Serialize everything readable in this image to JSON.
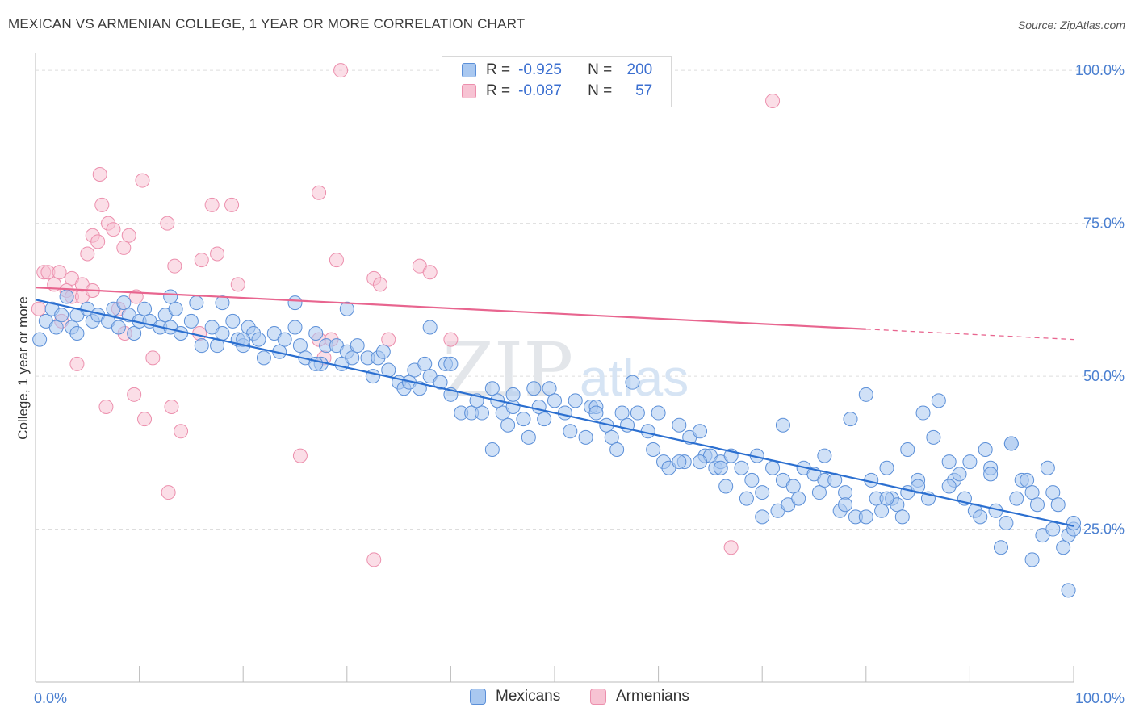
{
  "title": "MEXICAN VS ARMENIAN COLLEGE, 1 YEAR OR MORE CORRELATION CHART",
  "source": "Source: ZipAtlas.com",
  "watermark": {
    "zip": "ZIP",
    "atlas": "atlas"
  },
  "legend": {
    "series1": {
      "r_label": "R =",
      "r_value": "-0.925",
      "n_label": "N =",
      "n_value": "200"
    },
    "series2": {
      "r_label": "R =",
      "r_value": "-0.087",
      "n_label": "N =",
      "n_value": "57"
    }
  },
  "bottom_legend": {
    "mexicans": "Mexicans",
    "armenians": "Armenians"
  },
  "colors": {
    "mexicans_fill": "#a9c8f0",
    "mexicans_stroke": "#5b8fd8",
    "mexicans_line": "#2b6fd0",
    "armenians_fill": "#f7c3d3",
    "armenians_stroke": "#ec8fad",
    "armenians_line": "#e8658f",
    "grid": "#dddddd",
    "tick_text": "#4a7fd0"
  },
  "chart_data": {
    "type": "scatter",
    "title": "MEXICAN VS ARMENIAN COLLEGE, 1 YEAR OR MORE CORRELATION CHART",
    "xlabel": "",
    "ylabel": "College, 1 year or more",
    "xlim": [
      0,
      100
    ],
    "ylim": [
      0,
      102
    ],
    "x_tick_labels": [
      {
        "value": 0,
        "label": "0.0%"
      },
      {
        "value": 100,
        "label": "100.0%"
      }
    ],
    "y_tick_labels": [
      {
        "value": 25,
        "label": "25.0%"
      },
      {
        "value": 50,
        "label": "50.0%"
      },
      {
        "value": 75,
        "label": "75.0%"
      },
      {
        "value": 100,
        "label": "100.0%"
      }
    ],
    "grid": true,
    "series": [
      {
        "name": "Mexicans",
        "R": -0.925,
        "N": 200,
        "trend": {
          "x": [
            0,
            100
          ],
          "y": [
            62.5,
            25.5
          ],
          "dashed_from": null
        },
        "points": [
          [
            0.4,
            56
          ],
          [
            1,
            59
          ],
          [
            1.6,
            61
          ],
          [
            2,
            58
          ],
          [
            2.5,
            60
          ],
          [
            3,
            63
          ],
          [
            3.5,
            58
          ],
          [
            4,
            60
          ],
          [
            5,
            61
          ],
          [
            5.5,
            59
          ],
          [
            6,
            60
          ],
          [
            7,
            59
          ],
          [
            7.5,
            61
          ],
          [
            8,
            58
          ],
          [
            8.5,
            62
          ],
          [
            9,
            60
          ],
          [
            9.5,
            57
          ],
          [
            10,
            59
          ],
          [
            10.5,
            61
          ],
          [
            11,
            59
          ],
          [
            12,
            58
          ],
          [
            12.5,
            60
          ],
          [
            13,
            58
          ],
          [
            13.5,
            61
          ],
          [
            14,
            57
          ],
          [
            15,
            59
          ],
          [
            15.5,
            62
          ],
          [
            16,
            55
          ],
          [
            17,
            58
          ],
          [
            17.5,
            55
          ],
          [
            18,
            57
          ],
          [
            19,
            59
          ],
          [
            19.5,
            56
          ],
          [
            20,
            55
          ],
          [
            20.5,
            58
          ],
          [
            21,
            57
          ],
          [
            21.5,
            56
          ],
          [
            22,
            53
          ],
          [
            23,
            57
          ],
          [
            23.5,
            54
          ],
          [
            24,
            56
          ],
          [
            25,
            58
          ],
          [
            25.5,
            55
          ],
          [
            26,
            53
          ],
          [
            27,
            57
          ],
          [
            27.5,
            52
          ],
          [
            28,
            55
          ],
          [
            29,
            55
          ],
          [
            29.5,
            52
          ],
          [
            30,
            54
          ],
          [
            30.5,
            53
          ],
          [
            31,
            55
          ],
          [
            32,
            53
          ],
          [
            32.5,
            50
          ],
          [
            33,
            53
          ],
          [
            33.5,
            54
          ],
          [
            34,
            51
          ],
          [
            35,
            49
          ],
          [
            35.5,
            48
          ],
          [
            36,
            49
          ],
          [
            36.5,
            51
          ],
          [
            37,
            48
          ],
          [
            37.5,
            52
          ],
          [
            38,
            50
          ],
          [
            39,
            49
          ],
          [
            39.5,
            52
          ],
          [
            40,
            47
          ],
          [
            41,
            44
          ],
          [
            42,
            44
          ],
          [
            42.5,
            46
          ],
          [
            43,
            44
          ],
          [
            44,
            48
          ],
          [
            44.5,
            46
          ],
          [
            45,
            44
          ],
          [
            45.5,
            42
          ],
          [
            46,
            45
          ],
          [
            47,
            43
          ],
          [
            47.5,
            40
          ],
          [
            48,
            48
          ],
          [
            48.5,
            45
          ],
          [
            49,
            43
          ],
          [
            49.5,
            48
          ],
          [
            50,
            46
          ],
          [
            51,
            44
          ],
          [
            51.5,
            41
          ],
          [
            52,
            46
          ],
          [
            53,
            40
          ],
          [
            53.5,
            45
          ],
          [
            54,
            45
          ],
          [
            55,
            42
          ],
          [
            55.5,
            40
          ],
          [
            56,
            38
          ],
          [
            56.5,
            44
          ],
          [
            57,
            42
          ],
          [
            57.5,
            49
          ],
          [
            58,
            44
          ],
          [
            59,
            41
          ],
          [
            59.5,
            38
          ],
          [
            60,
            44
          ],
          [
            60.5,
            36
          ],
          [
            61,
            35
          ],
          [
            62,
            42
          ],
          [
            62.5,
            36
          ],
          [
            63,
            40
          ],
          [
            64,
            41
          ],
          [
            64.5,
            37
          ],
          [
            65,
            37
          ],
          [
            65.5,
            35
          ],
          [
            66,
            36
          ],
          [
            66.5,
            32
          ],
          [
            67,
            37
          ],
          [
            68,
            35
          ],
          [
            68.5,
            30
          ],
          [
            69,
            33
          ],
          [
            69.5,
            37
          ],
          [
            70,
            31
          ],
          [
            71,
            35
          ],
          [
            71.5,
            28
          ],
          [
            72,
            33
          ],
          [
            72.5,
            29
          ],
          [
            73,
            32
          ],
          [
            73.5,
            30
          ],
          [
            74,
            35
          ],
          [
            75,
            34
          ],
          [
            75.5,
            31
          ],
          [
            76,
            33
          ],
          [
            77,
            33
          ],
          [
            77.5,
            28
          ],
          [
            78,
            31
          ],
          [
            78.5,
            43
          ],
          [
            79,
            27
          ],
          [
            80,
            27
          ],
          [
            80.5,
            33
          ],
          [
            81,
            30
          ],
          [
            81.5,
            28
          ],
          [
            82,
            35
          ],
          [
            82.5,
            30
          ],
          [
            83,
            29
          ],
          [
            83.5,
            27
          ],
          [
            84,
            31
          ],
          [
            85,
            33
          ],
          [
            85.5,
            44
          ],
          [
            86,
            30
          ],
          [
            86.5,
            40
          ],
          [
            87,
            46
          ],
          [
            88,
            36
          ],
          [
            88.5,
            33
          ],
          [
            89,
            34
          ],
          [
            89.5,
            30
          ],
          [
            90,
            36
          ],
          [
            90.5,
            28
          ],
          [
            91,
            27
          ],
          [
            91.5,
            38
          ],
          [
            92,
            35
          ],
          [
            92.5,
            28
          ],
          [
            93,
            22
          ],
          [
            93.5,
            26
          ],
          [
            94,
            39
          ],
          [
            94.5,
            30
          ],
          [
            95,
            33
          ],
          [
            95.5,
            33
          ],
          [
            96,
            31
          ],
          [
            96.5,
            29
          ],
          [
            97,
            24
          ],
          [
            97.5,
            35
          ],
          [
            98,
            31
          ],
          [
            98.5,
            29
          ],
          [
            99,
            22
          ],
          [
            99.5,
            24
          ],
          [
            100,
            25
          ],
          [
            20,
            56
          ],
          [
            25,
            62
          ],
          [
            18,
            62
          ],
          [
            13,
            63
          ],
          [
            40,
            52
          ],
          [
            70,
            27
          ],
          [
            85,
            32
          ],
          [
            94,
            39
          ],
          [
            96,
            20
          ],
          [
            99.5,
            15
          ],
          [
            38,
            58
          ],
          [
            46,
            47
          ],
          [
            54,
            44
          ],
          [
            62,
            36
          ],
          [
            72,
            42
          ],
          [
            76,
            37
          ],
          [
            80,
            47
          ],
          [
            84,
            38
          ],
          [
            88,
            32
          ],
          [
            92,
            34
          ],
          [
            30,
            61
          ],
          [
            4,
            57
          ],
          [
            27,
            52
          ],
          [
            44,
            38
          ],
          [
            64,
            36
          ],
          [
            66,
            35
          ],
          [
            78,
            29
          ],
          [
            82,
            30
          ],
          [
            98,
            25
          ],
          [
            100,
            26
          ]
        ]
      },
      {
        "name": "Armenians",
        "R": -0.087,
        "N": 57,
        "trend": {
          "x": [
            0,
            100
          ],
          "y": [
            64.5,
            56.0
          ],
          "dashed_from": 80
        },
        "points": [
          [
            0.3,
            61
          ],
          [
            0.8,
            67
          ],
          [
            1.2,
            67
          ],
          [
            1.8,
            65
          ],
          [
            2.3,
            67
          ],
          [
            2.5,
            59
          ],
          [
            3,
            64
          ],
          [
            3.5,
            66
          ],
          [
            3.5,
            63
          ],
          [
            4,
            52
          ],
          [
            4.5,
            63
          ],
          [
            4.5,
            65
          ],
          [
            5,
            70
          ],
          [
            5.5,
            64
          ],
          [
            5.5,
            73
          ],
          [
            6,
            72
          ],
          [
            6.2,
            83
          ],
          [
            6.4,
            78
          ],
          [
            6.8,
            45
          ],
          [
            7,
            75
          ],
          [
            7.5,
            74
          ],
          [
            8,
            61
          ],
          [
            8.5,
            71
          ],
          [
            8.6,
            57
          ],
          [
            9,
            73
          ],
          [
            9.5,
            47
          ],
          [
            9.7,
            63
          ],
          [
            10.3,
            82
          ],
          [
            10.5,
            43
          ],
          [
            11.3,
            53
          ],
          [
            12.7,
            75
          ],
          [
            12.8,
            31
          ],
          [
            13.1,
            45
          ],
          [
            13.4,
            68
          ],
          [
            14,
            41
          ],
          [
            15.8,
            57
          ],
          [
            16,
            69
          ],
          [
            17,
            78
          ],
          [
            17.5,
            70
          ],
          [
            18.9,
            78
          ],
          [
            19.5,
            65
          ],
          [
            25.5,
            37
          ],
          [
            27.3,
            56
          ],
          [
            27.3,
            80
          ],
          [
            27.8,
            53
          ],
          [
            28.5,
            56
          ],
          [
            29,
            69
          ],
          [
            29.4,
            100
          ],
          [
            32.6,
            66
          ],
          [
            32.6,
            20
          ],
          [
            33.2,
            65
          ],
          [
            34,
            56
          ],
          [
            37,
            68
          ],
          [
            38,
            67
          ],
          [
            40,
            56
          ],
          [
            67,
            22
          ],
          [
            71,
            95
          ]
        ]
      }
    ]
  }
}
